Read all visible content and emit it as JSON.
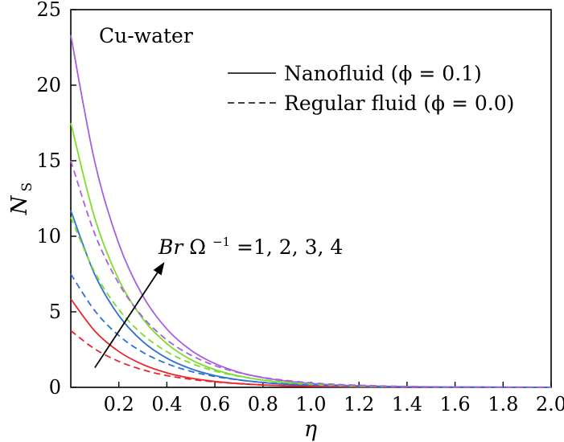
{
  "chart_data": {
    "type": "line",
    "title": "",
    "xlabel": "η",
    "ylabel_main": "N",
    "ylabel_sub": "S",
    "xlim": [
      0,
      2.0
    ],
    "ylim": [
      0,
      25
    ],
    "x_ticks": [
      0.2,
      0.4,
      0.6,
      0.8,
      1.0,
      1.2,
      1.4,
      1.6,
      1.8,
      2.0
    ],
    "x_tick_labels": [
      "0.2",
      "0.4",
      "0.6",
      "0.8",
      "1.0",
      "1.2",
      "1.4",
      "1.6",
      "1.8",
      "2.0"
    ],
    "y_ticks": [
      0,
      5,
      10,
      15,
      20,
      25
    ],
    "y_tick_labels": [
      "0",
      "5",
      "10",
      "15",
      "20",
      "25"
    ],
    "grid": false,
    "legend_placement": "top-right",
    "inset_label": "Cu-water",
    "legend": [
      {
        "label": "Nanofluid (ϕ = 0.1)",
        "style": "solid"
      },
      {
        "label": "Regular fluid (ϕ = 0.0)",
        "style": "dashed"
      }
    ],
    "annotation": {
      "var": "Br",
      "rest": " Ω",
      "sup": "−1",
      "tail": "=1, 2, 3, 4",
      "arrow_from": [
        0.1,
        1.3
      ],
      "arrow_to": [
        0.39,
        8.3
      ]
    },
    "x": [
      0.0,
      0.1,
      0.2,
      0.3,
      0.4,
      0.5,
      0.6,
      0.7,
      0.8,
      0.9,
      1.0,
      1.1,
      1.2,
      1.3,
      1.4,
      1.5,
      1.6,
      1.7,
      1.8,
      1.9,
      2.0
    ],
    "series": [
      {
        "group": "nanofluid",
        "color": "#e8262b",
        "dash": "solid",
        "values": [
          5.85,
          3.73,
          2.37,
          1.51,
          0.96,
          0.61,
          0.39,
          0.25,
          0.16,
          0.1,
          0.06,
          0.04,
          0.02,
          0.02,
          0.01,
          0.01,
          0.0,
          0.0,
          0.0,
          0.0,
          0.0
        ]
      },
      {
        "group": "nanofluid",
        "color": "#2f6fd6",
        "dash": "solid",
        "values": [
          11.7,
          7.46,
          4.75,
          3.03,
          1.93,
          1.23,
          0.78,
          0.5,
          0.32,
          0.2,
          0.13,
          0.08,
          0.05,
          0.03,
          0.02,
          0.01,
          0.01,
          0.01,
          0.0,
          0.0,
          0.0
        ]
      },
      {
        "group": "nanofluid",
        "color": "#7cdd2a",
        "dash": "solid",
        "values": [
          17.5,
          11.19,
          7.12,
          4.54,
          2.89,
          1.84,
          1.17,
          0.75,
          0.48,
          0.3,
          0.19,
          0.12,
          0.08,
          0.05,
          0.03,
          0.02,
          0.01,
          0.01,
          0.01,
          0.0,
          0.0
        ]
      },
      {
        "group": "nanofluid",
        "color": "#a45fe2",
        "dash": "solid",
        "values": [
          23.3,
          14.91,
          9.5,
          6.05,
          3.86,
          2.46,
          1.57,
          1.0,
          0.64,
          0.41,
          0.26,
          0.16,
          0.1,
          0.07,
          0.04,
          0.03,
          0.02,
          0.01,
          0.01,
          0.0,
          0.0
        ]
      },
      {
        "group": "regular",
        "color": "#e8262b",
        "dash": "dashed",
        "values": [
          3.75,
          2.54,
          1.72,
          1.16,
          0.78,
          0.53,
          0.36,
          0.24,
          0.16,
          0.11,
          0.07,
          0.05,
          0.03,
          0.02,
          0.02,
          0.01,
          0.01,
          0.01,
          0.0,
          0.0,
          0.0
        ]
      },
      {
        "group": "regular",
        "color": "#2f6fd6",
        "dash": "dashed",
        "values": [
          7.5,
          5.07,
          3.43,
          2.32,
          1.57,
          1.06,
          0.72,
          0.49,
          0.33,
          0.22,
          0.15,
          0.1,
          0.07,
          0.05,
          0.03,
          0.02,
          0.01,
          0.01,
          0.01,
          0.01,
          0.0
        ]
      },
      {
        "group": "regular",
        "color": "#7cdd2a",
        "dash": "dashed",
        "values": [
          11.25,
          7.61,
          5.15,
          3.49,
          2.36,
          1.6,
          1.08,
          0.73,
          0.49,
          0.33,
          0.23,
          0.15,
          0.1,
          0.07,
          0.05,
          0.03,
          0.02,
          0.02,
          0.01,
          0.01,
          0.01
        ]
      },
      {
        "group": "regular",
        "color": "#a45fe2",
        "dash": "dashed",
        "values": [
          15.0,
          10.15,
          6.87,
          4.65,
          3.14,
          2.13,
          1.44,
          0.97,
          0.66,
          0.45,
          0.3,
          0.2,
          0.14,
          0.09,
          0.06,
          0.04,
          0.03,
          0.02,
          0.01,
          0.01,
          0.01
        ]
      }
    ]
  }
}
